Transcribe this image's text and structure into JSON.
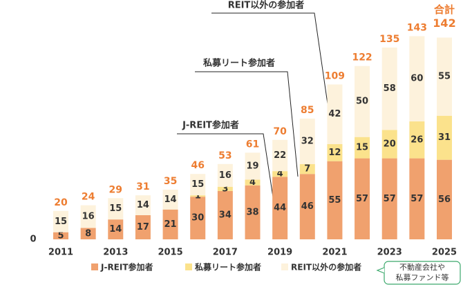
{
  "chart_data": {
    "type": "stacked_bar",
    "categories": [
      "2011",
      null,
      "2013",
      null,
      "2015",
      null,
      "2017",
      null,
      "2019",
      null,
      "2021",
      null,
      "2023",
      null,
      "2025"
    ],
    "series": [
      {
        "name": "J-REIT参加者",
        "color": "#f0a16e",
        "values": [
          5,
          8,
          14,
          17,
          21,
          30,
          34,
          38,
          44,
          46,
          55,
          57,
          57,
          57,
          56
        ]
      },
      {
        "name": "私募リート参加者",
        "color": "#fbe28c",
        "values": [
          null,
          null,
          null,
          null,
          null,
          1,
          3,
          4,
          4,
          7,
          12,
          15,
          20,
          26,
          31
        ]
      },
      {
        "name": "REIT以外の参加者",
        "color": "#fdf2dc",
        "values": [
          15,
          16,
          15,
          14,
          14,
          15,
          16,
          19,
          22,
          32,
          42,
          50,
          58,
          60,
          55
        ]
      }
    ],
    "totals": [
      20,
      24,
      29,
      31,
      35,
      46,
      53,
      61,
      70,
      85,
      109,
      122,
      135,
      143,
      142
    ],
    "total_color": "#ed7d31",
    "total_title": "合計",
    "ylim": [
      0,
      150
    ],
    "yticks": [
      0
    ],
    "annotations": [
      "J-REIT参加者",
      "私募リート参加者",
      "REIT以外の参加者"
    ],
    "callout": [
      "不動産会社や",
      "私募ファンド等"
    ]
  }
}
